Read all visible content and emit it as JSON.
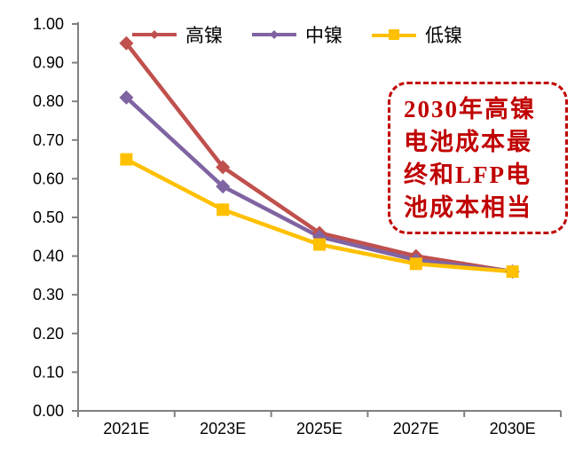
{
  "chart_data": {
    "type": "line",
    "title": "",
    "xlabel": "",
    "ylabel": "",
    "categories": [
      "2021E",
      "2023E",
      "2025E",
      "2027E",
      "2030E"
    ],
    "series": [
      {
        "name": "高镍",
        "color": "#C0504D",
        "marker": "diamond",
        "values": [
          0.95,
          0.63,
          0.46,
          0.4,
          0.36
        ]
      },
      {
        "name": "中镍",
        "color": "#8064A2",
        "marker": "diamond",
        "values": [
          0.81,
          0.58,
          0.45,
          0.39,
          0.36
        ]
      },
      {
        "name": "低镍",
        "color": "#FFC000",
        "marker": "square",
        "values": [
          0.65,
          0.52,
          0.43,
          0.38,
          0.36
        ]
      }
    ],
    "ylim": [
      0.0,
      1.0
    ],
    "ytick_values": [
      0.0,
      0.1,
      0.2,
      0.3,
      0.4,
      0.5,
      0.6,
      0.7,
      0.8,
      0.9,
      1.0
    ],
    "ytick_labels": [
      "0.00",
      "0.10",
      "0.20",
      "0.30",
      "0.40",
      "0.50",
      "0.60",
      "0.70",
      "0.80",
      "0.90",
      "1.00"
    ],
    "grid": false,
    "legend_position": "top",
    "axis_color": "#808080",
    "annotation": {
      "text": "2030年高镍电池成本最终和LFP电池成本相当",
      "lines": [
        "2030年高镍",
        "电池成本最",
        "终和LFP电",
        "池成本相当"
      ],
      "color": "#C00000"
    }
  }
}
